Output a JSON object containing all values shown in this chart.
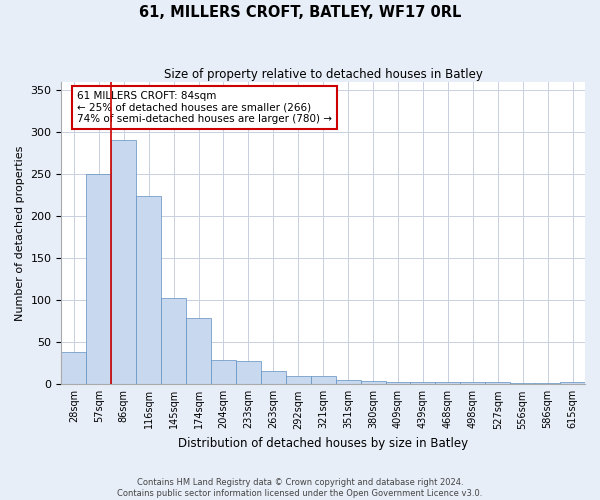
{
  "title": "61, MILLERS CROFT, BATLEY, WF17 0RL",
  "subtitle": "Size of property relative to detached houses in Batley",
  "xlabel": "Distribution of detached houses by size in Batley",
  "ylabel": "Number of detached properties",
  "categories": [
    "28sqm",
    "57sqm",
    "86sqm",
    "116sqm",
    "145sqm",
    "174sqm",
    "204sqm",
    "233sqm",
    "263sqm",
    "292sqm",
    "321sqm",
    "351sqm",
    "380sqm",
    "409sqm",
    "439sqm",
    "468sqm",
    "498sqm",
    "527sqm",
    "556sqm",
    "586sqm",
    "615sqm"
  ],
  "values": [
    38,
    250,
    291,
    224,
    103,
    79,
    29,
    28,
    16,
    10,
    10,
    5,
    4,
    3,
    3,
    3,
    3,
    3,
    1,
    1,
    3
  ],
  "bar_color": "#c8d8ee",
  "bar_edge_color": "#6090c0",
  "highlight_index": 2,
  "highlight_line_color": "#cc0000",
  "annotation_text": "61 MILLERS CROFT: 84sqm\n← 25% of detached houses are smaller (266)\n74% of semi-detached houses are larger (780) →",
  "ylim": [
    0,
    360
  ],
  "yticks": [
    0,
    50,
    100,
    150,
    200,
    250,
    300,
    350
  ],
  "footnote": "Contains HM Land Registry data © Crown copyright and database right 2024.\nContains public sector information licensed under the Open Government Licence v3.0.",
  "background_color": "#e8eef8",
  "plot_bg_color": "#ffffff",
  "grid_color": "#c8d0e0"
}
